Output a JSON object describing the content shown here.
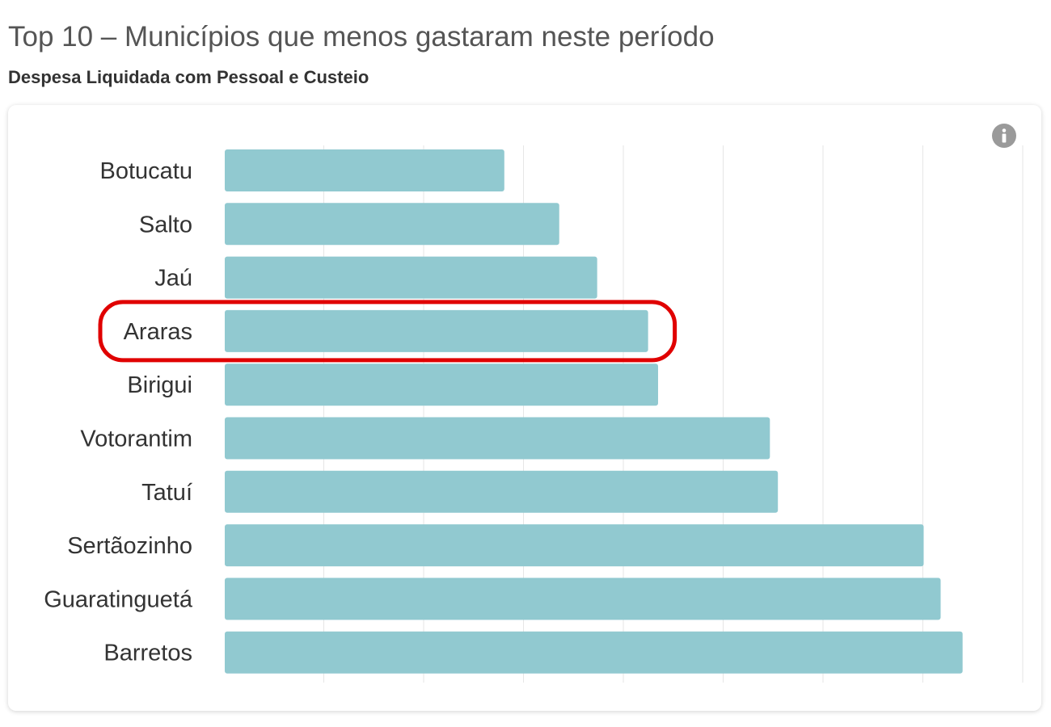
{
  "header": {
    "title": "Top 10 – Municípios que menos gastaram neste período",
    "subtitle": "Despesa Liquidada com Pessoal e Custeio"
  },
  "icons": {
    "info": "info-icon"
  },
  "colors": {
    "bar": "#91c9d0",
    "grid": "#e6e6e6",
    "highlight": "#e00000",
    "label": "#333333"
  },
  "chart_data": {
    "type": "bar",
    "orientation": "horizontal",
    "categories": [
      "Botucatu",
      "Salto",
      "Jaú",
      "Araras",
      "Birigui",
      "Votorantim",
      "Tatuí",
      "Sertãozinho",
      "Guaratinguetá",
      "Barretos"
    ],
    "values": [
      2.8,
      3.35,
      3.73,
      4.24,
      4.34,
      5.46,
      5.54,
      7.0,
      7.17,
      7.39
    ],
    "xlim": [
      0,
      8
    ],
    "grid": true,
    "highlighted_category": "Araras"
  }
}
